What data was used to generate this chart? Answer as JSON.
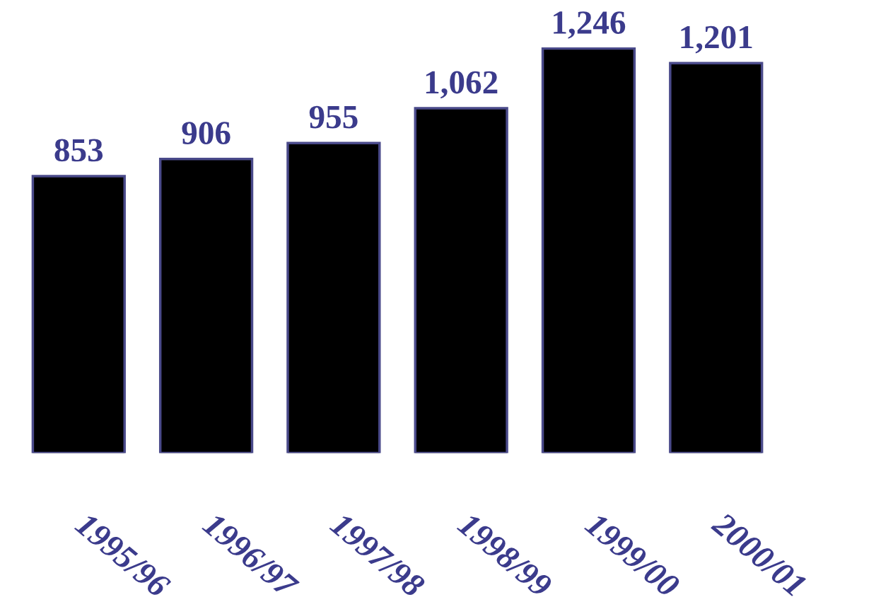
{
  "chart_data": {
    "type": "bar",
    "categories": [
      "1995/96",
      "1996/97",
      "1997/98",
      "1998/99",
      "1999/00",
      "2000/01"
    ],
    "values": [
      853,
      906,
      955,
      1062,
      1246,
      1201
    ],
    "color": "#000000",
    "value_labels": [
      "853",
      "906",
      "955",
      "1,062",
      "1,246",
      "1,201"
    ],
    "grid": false,
    "legend": false
  }
}
